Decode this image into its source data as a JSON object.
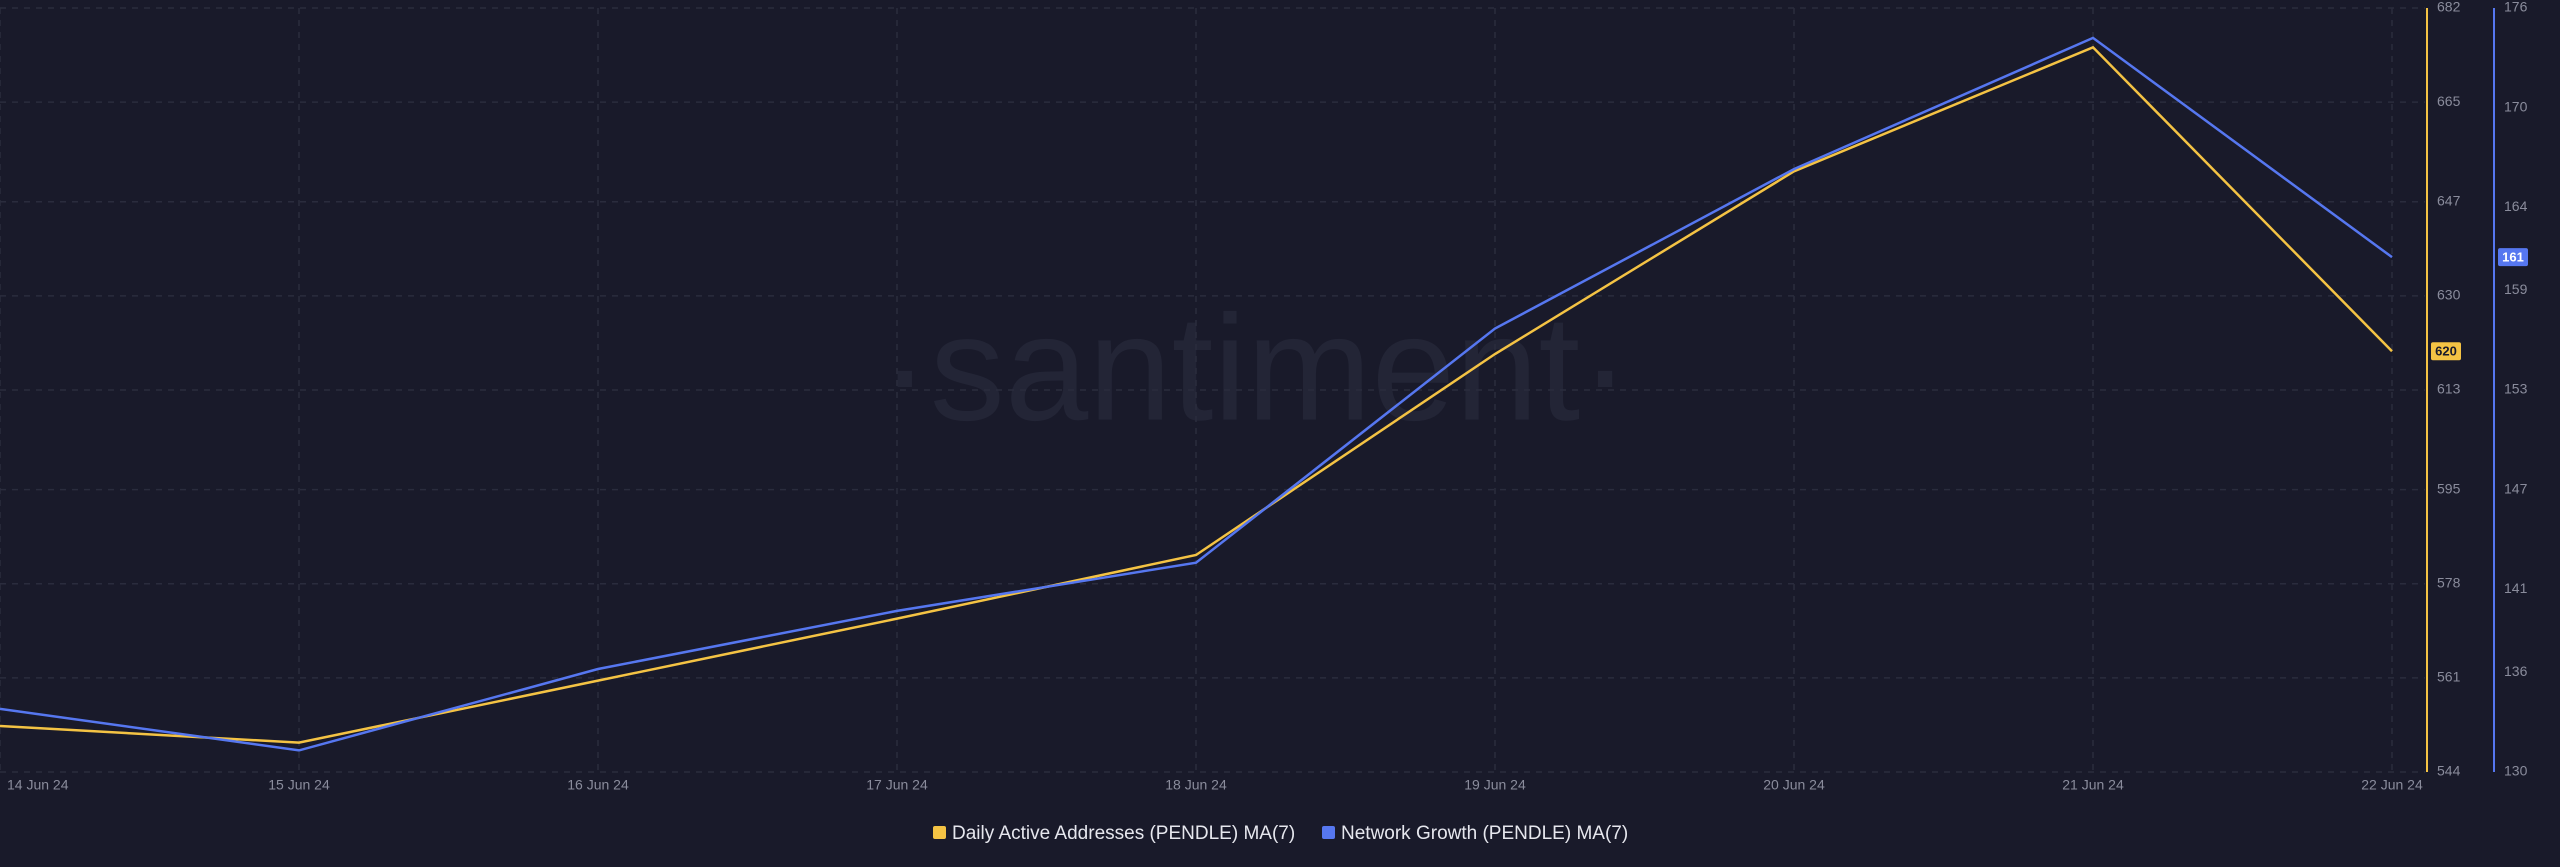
{
  "chart_data": {
    "type": "line",
    "watermark": "·santiment·",
    "categories": [
      "14 Jun 24",
      "15 Jun 24",
      "16 Jun 24",
      "17 Jun 24",
      "18 Jun 24",
      "19 Jun 24",
      "20 Jun 24",
      "21 Jun 24",
      "22 Jun 24"
    ],
    "series": [
      {
        "name": "Daily Active Addresses (PENDLE) MA(7)",
        "color": "#f4c344",
        "values": [
          552.3,
          549.3,
          560.5,
          571.7,
          583.2,
          619.5,
          652.5,
          674.9,
          620
        ]
      },
      {
        "name": "Network Growth (PENDLE) MA(7)",
        "color": "#5677f0",
        "axis": "y2",
        "values": [
          133.8,
          131.3,
          136.2,
          139.7,
          142.6,
          156.7,
          166.3,
          174.2,
          161
        ]
      }
    ],
    "ylim": [
      544,
      682
    ],
    "yticks": [
      544,
      561,
      578,
      595,
      613,
      630,
      647,
      665,
      682
    ],
    "y2lim": [
      130,
      176
    ],
    "y2ticks": [
      130,
      136,
      141,
      147,
      153,
      159,
      164,
      170,
      176
    ],
    "grid": true,
    "legend": "bottom"
  }
}
